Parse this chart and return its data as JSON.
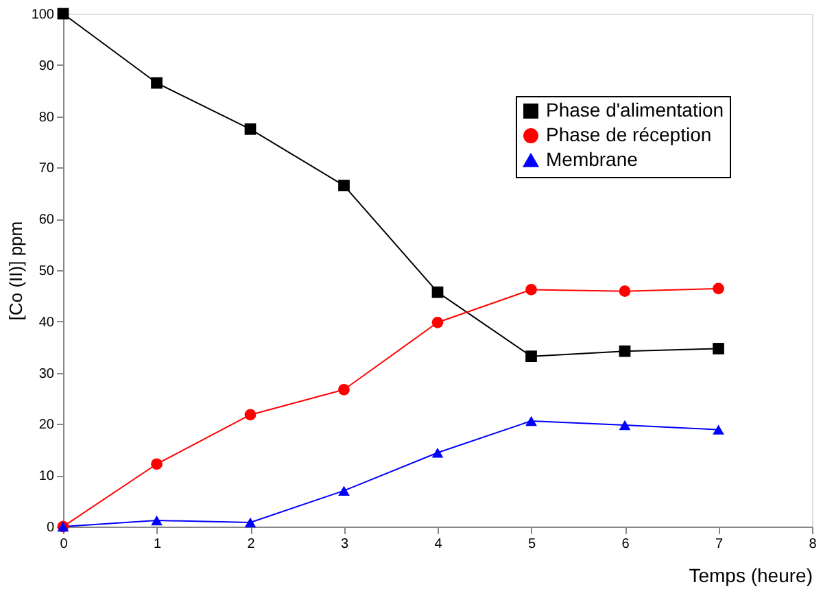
{
  "chart_data": {
    "type": "line",
    "xlabel": "Temps (heure)",
    "ylabel": "[Co (II)] ppm",
    "x": [
      0,
      1,
      2,
      3,
      4,
      5,
      6,
      7
    ],
    "series": [
      {
        "name": "Phase d'alimentation",
        "color": "#000000",
        "marker": "square",
        "values": [
          100,
          86.5,
          77.5,
          66.5,
          45.7,
          33.2,
          34.2,
          34.7
        ]
      },
      {
        "name": "Phase de réception",
        "color": "#ff0000",
        "marker": "circle",
        "values": [
          0,
          12.2,
          21.8,
          26.7,
          39.8,
          46.2,
          45.9,
          46.4
        ]
      },
      {
        "name": "Membrane",
        "color": "#0000ff",
        "marker": "triangle",
        "values": [
          0,
          1.2,
          0.8,
          7.0,
          14.4,
          20.6,
          19.8,
          18.9
        ]
      }
    ],
    "xlim": [
      0,
      8
    ],
    "xticks": [
      0,
      1,
      2,
      3,
      4,
      5,
      6,
      7,
      8
    ],
    "ylim": [
      0,
      100
    ],
    "yticks": [
      0,
      10,
      20,
      30,
      40,
      50,
      60,
      70,
      80,
      90,
      100
    ],
    "grid": false,
    "legend": "top right",
    "line_style": "solid"
  }
}
